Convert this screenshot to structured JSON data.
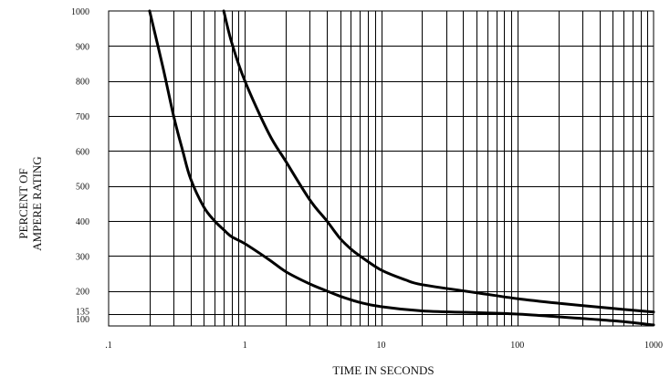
{
  "chart_data": {
    "type": "line",
    "xscale": "log",
    "xlim": [
      0.1,
      1000
    ],
    "ylim": [
      100,
      1000
    ],
    "xlabel": "TIME IN SECONDS",
    "ylabel_lines": [
      "PERCENT OF",
      "AMPERE RATING"
    ],
    "x_tick_labels": [
      {
        "value": 0.1,
        "label": ".1"
      },
      {
        "value": 1,
        "label": "1"
      },
      {
        "value": 10,
        "label": "10"
      },
      {
        "value": 100,
        "label": "100"
      },
      {
        "value": 1000,
        "label": "1000"
      }
    ],
    "y_tick_labels": [
      {
        "value": 1000,
        "label": "1000"
      },
      {
        "value": 900,
        "label": "900"
      },
      {
        "value": 800,
        "label": "800"
      },
      {
        "value": 700,
        "label": "700"
      },
      {
        "value": 600,
        "label": "600"
      },
      {
        "value": 500,
        "label": "500"
      },
      {
        "value": 400,
        "label": "400"
      },
      {
        "value": 300,
        "label": "300"
      },
      {
        "value": 200,
        "label": "200"
      },
      {
        "value": 135,
        "label": "135"
      },
      {
        "value": 100,
        "label": "100"
      }
    ],
    "grid": true,
    "series": [
      {
        "x": [
          0.2,
          0.25,
          0.3,
          0.35,
          0.4,
          0.5,
          0.6,
          0.7,
          0.8,
          1,
          1.5,
          2,
          3,
          4,
          5,
          7,
          10,
          20,
          50,
          100,
          200,
          500,
          1000
        ],
        "y": [
          1000,
          840,
          700,
          600,
          520,
          440,
          400,
          375,
          355,
          335,
          290,
          255,
          220,
          200,
          185,
          167,
          155,
          143,
          138,
          134,
          126,
          115,
          103
        ]
      },
      {
        "x": [
          0.7,
          0.8,
          1,
          1.5,
          2,
          3,
          4,
          5,
          6,
          7,
          10,
          15,
          20,
          50,
          100,
          200,
          500,
          1000
        ],
        "y": [
          1000,
          910,
          800,
          650,
          570,
          460,
          400,
          350,
          320,
          300,
          260,
          232,
          218,
          195,
          178,
          165,
          150,
          140
        ]
      }
    ]
  }
}
